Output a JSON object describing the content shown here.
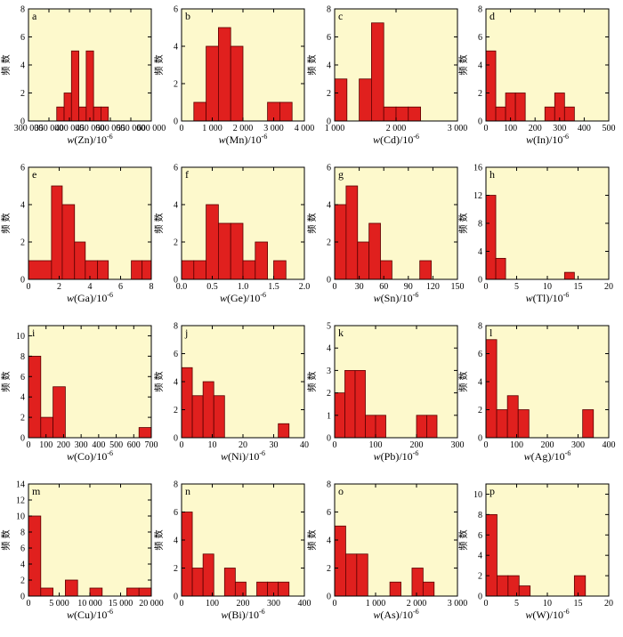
{
  "colors": {
    "bar_fill": "#e0201e",
    "bar_stroke": "#5a0000",
    "plot_bg": "#fdf9cc",
    "axis": "#000000"
  },
  "ylabel": "频 数",
  "chart_data": [
    {
      "type": "bar",
      "panel": "a",
      "xlabel_var": "Zn",
      "xlabel_unit": "/10",
      "xlabel_exp": "-6",
      "xlim": [
        300000,
        600000
      ],
      "xticks": [
        300000,
        350000,
        400000,
        450000,
        500000,
        550000,
        600000
      ],
      "xtick_labels": [
        "300 000",
        "350 000",
        "400 000",
        "450 000",
        "500 000",
        "550 000",
        "600 000"
      ],
      "ylim": [
        0,
        8
      ],
      "yticks": [
        0,
        2,
        4,
        6,
        8
      ],
      "bins": [
        [
          369000,
          387000,
          1
        ],
        [
          387000,
          405000,
          2
        ],
        [
          405000,
          423000,
          5
        ],
        [
          423000,
          441000,
          1
        ],
        [
          441000,
          459000,
          5
        ],
        [
          459000,
          477000,
          1
        ],
        [
          477000,
          495000,
          1
        ]
      ]
    },
    {
      "type": "bar",
      "panel": "b",
      "xlabel_var": "Mn",
      "xlabel_unit": "/10",
      "xlabel_exp": "-6",
      "xlim": [
        0,
        4000
      ],
      "xticks": [
        0,
        1000,
        2000,
        3000,
        4000
      ],
      "xtick_labels": [
        "0",
        "1 000",
        "2 000",
        "3 000",
        "4 000"
      ],
      "ylim": [
        0,
        6
      ],
      "yticks": [
        0,
        2,
        4,
        6
      ],
      "bins": [
        [
          400,
          800,
          1
        ],
        [
          800,
          1200,
          4
        ],
        [
          1200,
          1600,
          5
        ],
        [
          1600,
          2000,
          4
        ],
        [
          2800,
          3200,
          1
        ],
        [
          3200,
          3600,
          1
        ]
      ]
    },
    {
      "type": "bar",
      "panel": "c",
      "xlabel_var": "Cd",
      "xlabel_unit": "/10",
      "xlabel_exp": "-6",
      "xlim": [
        1000,
        3000
      ],
      "xticks": [
        1000,
        2000,
        3000
      ],
      "xtick_labels": [
        "1 000",
        "2 000",
        "3 000"
      ],
      "ylim": [
        0,
        8
      ],
      "yticks": [
        0,
        2,
        4,
        6,
        8
      ],
      "bins": [
        [
          1000,
          1200,
          3
        ],
        [
          1400,
          1600,
          3
        ],
        [
          1600,
          1800,
          7
        ],
        [
          1800,
          2000,
          1
        ],
        [
          2000,
          2200,
          1
        ],
        [
          2200,
          2400,
          1
        ]
      ]
    },
    {
      "type": "bar",
      "panel": "d",
      "xlabel_var": "In",
      "xlabel_unit": "/10",
      "xlabel_exp": "-6",
      "xlim": [
        0,
        500
      ],
      "xticks": [
        0,
        100,
        200,
        300,
        400,
        500
      ],
      "xtick_labels": [
        "0",
        "100",
        "200",
        "300",
        "400",
        "500"
      ],
      "ylim": [
        0,
        8
      ],
      "yticks": [
        0,
        2,
        4,
        6,
        8
      ],
      "bins": [
        [
          0,
          40,
          5
        ],
        [
          40,
          80,
          1
        ],
        [
          80,
          120,
          2
        ],
        [
          120,
          160,
          2
        ],
        [
          240,
          280,
          1
        ],
        [
          280,
          320,
          2
        ],
        [
          320,
          360,
          1
        ]
      ]
    },
    {
      "type": "bar",
      "panel": "e",
      "xlabel_var": "Ga",
      "xlabel_unit": "/10",
      "xlabel_exp": "-6",
      "xlim": [
        0,
        8
      ],
      "xticks": [
        0,
        2,
        4,
        6,
        8
      ],
      "xtick_labels": [
        "0",
        "2",
        "4",
        "6",
        "8"
      ],
      "ylim": [
        0,
        6
      ],
      "yticks": [
        0,
        2,
        4,
        6
      ],
      "bins": [
        [
          0,
          1.5,
          1
        ],
        [
          1.5,
          2.2,
          5
        ],
        [
          2.2,
          3.0,
          4
        ],
        [
          3.0,
          3.7,
          2
        ],
        [
          3.7,
          4.5,
          1
        ],
        [
          4.5,
          5.2,
          1
        ],
        [
          6.7,
          7.4,
          1
        ],
        [
          7.4,
          8,
          1
        ]
      ]
    },
    {
      "type": "bar",
      "panel": "f",
      "xlabel_var": "Ge",
      "xlabel_unit": "/10",
      "xlabel_exp": "-6",
      "xlim": [
        0,
        2
      ],
      "xticks": [
        0,
        0.5,
        1.0,
        1.5,
        2.0
      ],
      "xtick_labels": [
        "0.0",
        "0.5",
        "1.0",
        "1.5",
        "2.0"
      ],
      "ylim": [
        0,
        6
      ],
      "yticks": [
        0,
        2,
        4,
        6
      ],
      "bins": [
        [
          0,
          0.2,
          1
        ],
        [
          0.2,
          0.4,
          1
        ],
        [
          0.4,
          0.6,
          4
        ],
        [
          0.6,
          0.8,
          3
        ],
        [
          0.8,
          1.0,
          3
        ],
        [
          1.0,
          1.2,
          1
        ],
        [
          1.2,
          1.4,
          2
        ],
        [
          1.5,
          1.7,
          1
        ]
      ]
    },
    {
      "type": "bar",
      "panel": "g",
      "xlabel_var": "Sn",
      "xlabel_unit": "/10",
      "xlabel_exp": "-6",
      "xlim": [
        0,
        150
      ],
      "xticks": [
        0,
        30,
        60,
        90,
        120,
        150
      ],
      "xtick_labels": [
        "0",
        "30",
        "60",
        "90",
        "120",
        "150"
      ],
      "ylim": [
        0,
        6
      ],
      "yticks": [
        0,
        2,
        4,
        6
      ],
      "bins": [
        [
          0,
          14,
          4
        ],
        [
          14,
          28,
          5
        ],
        [
          28,
          42,
          2
        ],
        [
          42,
          56,
          3
        ],
        [
          56,
          70,
          1
        ],
        [
          104,
          118,
          1
        ]
      ]
    },
    {
      "type": "bar",
      "panel": "h",
      "xlabel_var": "Tl",
      "xlabel_unit": "/10",
      "xlabel_exp": "-6",
      "xlim": [
        0,
        20
      ],
      "xticks": [
        0,
        5,
        10,
        15,
        20
      ],
      "xtick_labels": [
        "0",
        "5",
        "10",
        "15",
        "20"
      ],
      "ylim": [
        0,
        16
      ],
      "yticks": [
        0,
        4,
        8,
        12,
        16
      ],
      "bins": [
        [
          0,
          1.6,
          12
        ],
        [
          1.6,
          3.2,
          3
        ],
        [
          12.8,
          14.4,
          1
        ]
      ]
    },
    {
      "type": "bar",
      "panel": "i",
      "xlabel_var": "Co",
      "xlabel_unit": "/10",
      "xlabel_exp": "-6",
      "xlim": [
        0,
        700
      ],
      "xticks": [
        0,
        100,
        200,
        300,
        400,
        500,
        600,
        700
      ],
      "xtick_labels": [
        "0",
        "100",
        "200",
        "300",
        "400",
        "500",
        "600",
        "700"
      ],
      "ylim": [
        0,
        11
      ],
      "yticks": [
        0,
        2,
        4,
        6,
        8,
        10
      ],
      "bins": [
        [
          0,
          70,
          8
        ],
        [
          70,
          140,
          2
        ],
        [
          140,
          210,
          5
        ],
        [
          630,
          700,
          1
        ]
      ]
    },
    {
      "type": "bar",
      "panel": "j",
      "xlabel_var": "Ni",
      "xlabel_unit": "/10",
      "xlabel_exp": "-6",
      "xlim": [
        0,
        40
      ],
      "xticks": [
        0,
        10,
        20,
        30,
        40
      ],
      "xtick_labels": [
        "0",
        "10",
        "20",
        "30",
        "40"
      ],
      "ylim": [
        0,
        8
      ],
      "yticks": [
        0,
        2,
        4,
        6,
        8
      ],
      "bins": [
        [
          0,
          3.5,
          5
        ],
        [
          3.5,
          7,
          3
        ],
        [
          7,
          10.5,
          4
        ],
        [
          10.5,
          14,
          3
        ],
        [
          31.5,
          35,
          1
        ]
      ]
    },
    {
      "type": "bar",
      "panel": "k",
      "xlabel_var": "Pb",
      "xlabel_unit": "/10",
      "xlabel_exp": "-6",
      "xlim": [
        0,
        300
      ],
      "xticks": [
        0,
        100,
        200,
        300
      ],
      "xtick_labels": [
        "0",
        "100",
        "200",
        "300"
      ],
      "ylim": [
        0,
        5
      ],
      "yticks": [
        0,
        1,
        2,
        3,
        4,
        5
      ],
      "bins": [
        [
          0,
          25,
          2
        ],
        [
          25,
          50,
          3
        ],
        [
          50,
          75,
          3
        ],
        [
          75,
          100,
          1
        ],
        [
          100,
          125,
          1
        ],
        [
          200,
          225,
          1
        ],
        [
          225,
          250,
          1
        ]
      ]
    },
    {
      "type": "bar",
      "panel": "l",
      "xlabel_var": "Ag",
      "xlabel_unit": "/10",
      "xlabel_exp": "-6",
      "xlim": [
        0,
        400
      ],
      "xticks": [
        0,
        100,
        200,
        300,
        400
      ],
      "xtick_labels": [
        "0",
        "100",
        "200",
        "300",
        "400"
      ],
      "ylim": [
        0,
        8
      ],
      "yticks": [
        0,
        2,
        4,
        6,
        8
      ],
      "bins": [
        [
          0,
          35,
          7
        ],
        [
          35,
          70,
          2
        ],
        [
          70,
          105,
          3
        ],
        [
          105,
          140,
          2
        ],
        [
          315,
          350,
          2
        ]
      ]
    },
    {
      "type": "bar",
      "panel": "m",
      "xlabel_var": "Cu",
      "xlabel_unit": "/10",
      "xlabel_exp": "-6",
      "xlim": [
        0,
        20000
      ],
      "xticks": [
        0,
        5000,
        10000,
        15000,
        20000
      ],
      "xtick_labels": [
        "0",
        "5 000",
        "10 000",
        "15 000",
        "20 000"
      ],
      "ylim": [
        0,
        14
      ],
      "yticks": [
        0,
        2,
        4,
        6,
        8,
        10,
        12,
        14
      ],
      "bins": [
        [
          0,
          2000,
          10
        ],
        [
          2000,
          4000,
          1
        ],
        [
          6000,
          8000,
          2
        ],
        [
          10000,
          12000,
          1
        ],
        [
          16000,
          18000,
          1
        ],
        [
          18000,
          20000,
          1
        ]
      ]
    },
    {
      "type": "bar",
      "panel": "n",
      "xlabel_var": "Bi",
      "xlabel_unit": "/10",
      "xlabel_exp": "-6",
      "xlim": [
        0,
        400
      ],
      "xticks": [
        0,
        100,
        200,
        300,
        400
      ],
      "xtick_labels": [
        "0",
        "100",
        "200",
        "300",
        "400"
      ],
      "ylim": [
        0,
        8
      ],
      "yticks": [
        0,
        2,
        4,
        6,
        8
      ],
      "bins": [
        [
          0,
          35,
          6
        ],
        [
          35,
          70,
          2
        ],
        [
          70,
          105,
          3
        ],
        [
          140,
          175,
          2
        ],
        [
          175,
          210,
          1
        ],
        [
          245,
          280,
          1
        ],
        [
          280,
          315,
          1
        ],
        [
          315,
          350,
          1
        ]
      ]
    },
    {
      "type": "bar",
      "panel": "o",
      "xlabel_var": "As",
      "xlabel_unit": "/10",
      "xlabel_exp": "-6",
      "xlim": [
        0,
        3000
      ],
      "xticks": [
        0,
        1000,
        2000,
        3000
      ],
      "xtick_labels": [
        "0",
        "1 000",
        "2 000",
        "3 000"
      ],
      "ylim": [
        0,
        8
      ],
      "yticks": [
        0,
        2,
        4,
        6,
        8
      ],
      "bins": [
        [
          0,
          270,
          5
        ],
        [
          270,
          540,
          3
        ],
        [
          540,
          810,
          3
        ],
        [
          1350,
          1620,
          1
        ],
        [
          1890,
          2160,
          2
        ],
        [
          2160,
          2430,
          1
        ]
      ]
    },
    {
      "type": "bar",
      "panel": "p",
      "xlabel_var": "W",
      "xlabel_unit": "/10",
      "xlabel_exp": "-6",
      "xlim": [
        0,
        20
      ],
      "xticks": [
        0,
        5,
        10,
        15,
        20
      ],
      "xtick_labels": [
        "0",
        "5",
        "10",
        "15",
        "20"
      ],
      "ylim": [
        0,
        11
      ],
      "yticks": [
        0,
        2,
        4,
        6,
        8,
        10
      ],
      "bins": [
        [
          0,
          1.8,
          8
        ],
        [
          1.8,
          3.6,
          2
        ],
        [
          3.6,
          5.4,
          2
        ],
        [
          5.4,
          7.2,
          1
        ],
        [
          14.4,
          16.2,
          2
        ]
      ]
    }
  ]
}
